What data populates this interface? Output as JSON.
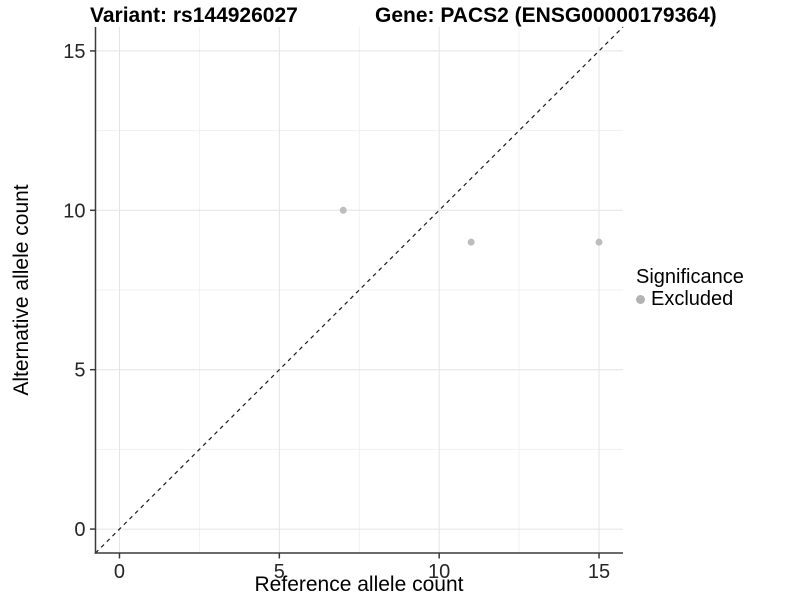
{
  "titles": {
    "variant": "Variant: rs144926027",
    "gene": "Gene: PACS2 (ENSG00000179364)"
  },
  "chart_data": {
    "type": "scatter",
    "title_left": "Variant: rs144926027",
    "title_right": "Gene: PACS2 (ENSG00000179364)",
    "xlabel": "Reference allele count",
    "ylabel": "Alternative allele count",
    "xlim": [
      -0.75,
      15.75
    ],
    "ylim": [
      -0.75,
      15.75
    ],
    "xticks": [
      0,
      5,
      10,
      15
    ],
    "yticks": [
      0,
      5,
      10,
      15
    ],
    "x_minor_gridlines": [
      2.5,
      7.5,
      12.5
    ],
    "y_minor_gridlines": [
      2.5,
      7.5,
      12.5
    ],
    "grid": true,
    "series": [
      {
        "name": "Excluded",
        "color": "#bdbdbd",
        "points": [
          [
            7,
            10
          ],
          [
            11,
            9
          ],
          [
            15,
            9
          ]
        ]
      }
    ],
    "reference_line": {
      "type": "identity",
      "equation": "y = x",
      "style": "dashed",
      "color": "#1a1a1a"
    },
    "legend": {
      "title": "Significance",
      "position": "right",
      "entries": [
        {
          "label": "Excluded",
          "color": "#b3b3b3"
        }
      ]
    }
  },
  "colors": {
    "background": "#ffffff",
    "major_gridline": "#e4e4e4",
    "minor_gridline": "#f1f1f1",
    "axis_line": "#3a3a3a",
    "tick_label": "#262626",
    "point": "#bdbdbd"
  }
}
